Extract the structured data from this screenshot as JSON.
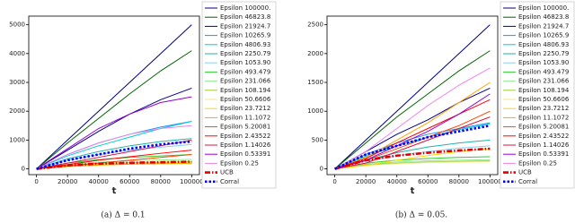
{
  "chart_data": [
    {
      "type": "line",
      "caption": "(a) Δ = 0.1",
      "xlabel": "t",
      "x": [
        0,
        20000,
        40000,
        60000,
        80000,
        100000
      ],
      "xlim": [
        -5000,
        105000
      ],
      "xticks": [
        0,
        20000,
        40000,
        60000,
        80000,
        100000
      ],
      "ylim": [
        -200,
        5300
      ],
      "yticks": [
        0,
        1000,
        2000,
        3000,
        4000,
        5000
      ],
      "series": [
        {
          "name": "Epsilon 100000.",
          "color": "#000080",
          "values": [
            0,
            1000,
            2000,
            3000,
            4000,
            5000
          ]
        },
        {
          "name": "Epsilon 46823.8",
          "color": "#006400",
          "values": [
            0,
            900,
            1750,
            2600,
            3400,
            4100
          ]
        },
        {
          "name": "Epsilon 21924.7",
          "color": "#00008b",
          "values": [
            0,
            650,
            1300,
            1900,
            2400,
            2800
          ]
        },
        {
          "name": "Epsilon 10265.9",
          "color": "#1e90ff",
          "values": [
            0,
            500,
            900,
            1200,
            1450,
            1650
          ]
        },
        {
          "name": "Epsilon 4806.93",
          "color": "#00ced1",
          "values": [
            0,
            450,
            800,
            1100,
            1400,
            1650
          ]
        },
        {
          "name": "Epsilon 2250.79",
          "color": "#20b2aa",
          "values": [
            0,
            350,
            600,
            800,
            950,
            1050
          ]
        },
        {
          "name": "Epsilon 1053.90",
          "color": "#87cefa",
          "values": [
            0,
            300,
            500,
            650,
            750,
            850
          ]
        },
        {
          "name": "Epsilon 493.479",
          "color": "#32cd32",
          "values": [
            0,
            200,
            320,
            400,
            450,
            500
          ]
        },
        {
          "name": "Epsilon 231.066",
          "color": "#90ee90",
          "values": [
            0,
            150,
            230,
            280,
            310,
            330
          ]
        },
        {
          "name": "Epsilon 108.194",
          "color": "#9acd32",
          "values": [
            0,
            120,
            180,
            210,
            230,
            250
          ]
        },
        {
          "name": "Epsilon 50.6606",
          "color": "#f0e68c",
          "values": [
            0,
            100,
            150,
            180,
            200,
            210
          ]
        },
        {
          "name": "Epsilon 23.7212",
          "color": "#ffd700",
          "values": [
            0,
            90,
            140,
            170,
            190,
            200
          ]
        },
        {
          "name": "Epsilon 11.1072",
          "color": "#ffa500",
          "values": [
            0,
            80,
            130,
            160,
            180,
            190
          ]
        },
        {
          "name": "Epsilon 5.20081",
          "color": "#ff4500",
          "values": [
            0,
            100,
            200,
            300,
            400,
            500
          ]
        },
        {
          "name": "Epsilon 2.43522",
          "color": "#ff0000",
          "values": [
            0,
            150,
            300,
            420,
            540,
            650
          ]
        },
        {
          "name": "Epsilon 1.14026",
          "color": "#dc143c",
          "values": [
            0,
            200,
            400,
            600,
            800,
            1000
          ]
        },
        {
          "name": "Epsilon 0.53391",
          "color": "#9400d3",
          "values": [
            0,
            700,
            1400,
            1900,
            2300,
            2500
          ]
        },
        {
          "name": "Epsilon 0.25",
          "color": "#ee82ee",
          "values": [
            0,
            500,
            900,
            1200,
            1400,
            1500
          ]
        },
        {
          "name": "UCB",
          "color": "#e00000",
          "linestyle": "dashdot",
          "values": [
            0,
            120,
            180,
            210,
            230,
            250
          ]
        },
        {
          "name": "Corral",
          "color": "#0000ff",
          "linestyle": "dotted",
          "values": [
            0,
            300,
            500,
            700,
            850,
            950
          ]
        }
      ]
    },
    {
      "type": "line",
      "caption": "(b) Δ = 0.05.",
      "xlabel": "t",
      "x": [
        0,
        20000,
        40000,
        60000,
        80000,
        100000
      ],
      "xlim": [
        -5000,
        105000
      ],
      "xticks": [
        0,
        20000,
        40000,
        60000,
        80000,
        100000
      ],
      "ylim": [
        -100,
        2650
      ],
      "yticks": [
        0,
        500,
        1000,
        1500,
        2000,
        2500
      ],
      "series": [
        {
          "name": "Epsilon 100000.",
          "color": "#000080",
          "values": [
            0,
            500,
            1000,
            1500,
            2000,
            2500
          ]
        },
        {
          "name": "Epsilon 46823.8",
          "color": "#006400",
          "values": [
            0,
            450,
            900,
            1300,
            1700,
            2050
          ]
        },
        {
          "name": "Epsilon 21924.7",
          "color": "#00008b",
          "values": [
            0,
            300,
            600,
            850,
            1150,
            1400
          ]
        },
        {
          "name": "Epsilon 10265.9",
          "color": "#1e90ff",
          "values": [
            0,
            250,
            450,
            600,
            700,
            800
          ]
        },
        {
          "name": "Epsilon 4806.93",
          "color": "#00ced1",
          "values": [
            0,
            220,
            400,
            550,
            680,
            780
          ]
        },
        {
          "name": "Epsilon 2250.79",
          "color": "#20b2aa",
          "values": [
            0,
            150,
            280,
            380,
            450,
            500
          ]
        },
        {
          "name": "Epsilon 1053.90",
          "color": "#87cefa",
          "values": [
            0,
            130,
            230,
            300,
            360,
            400
          ]
        },
        {
          "name": "Epsilon 493.479",
          "color": "#32cd32",
          "values": [
            0,
            100,
            150,
            180,
            200,
            210
          ]
        },
        {
          "name": "Epsilon 231.066",
          "color": "#90ee90",
          "values": [
            0,
            80,
            120,
            140,
            150,
            160
          ]
        },
        {
          "name": "Epsilon 108.194",
          "color": "#9acd32",
          "values": [
            0,
            70,
            100,
            120,
            130,
            140
          ]
        },
        {
          "name": "Epsilon 50.6606",
          "color": "#f0e68c",
          "values": [
            0,
            60,
            90,
            110,
            120,
            130
          ]
        },
        {
          "name": "Epsilon 23.7212",
          "color": "#ffd700",
          "values": [
            0,
            60,
            150,
            230,
            300,
            350
          ]
        },
        {
          "name": "Epsilon 11.1072",
          "color": "#ffa500",
          "values": [
            0,
            200,
            500,
            800,
            1150,
            1500
          ]
        },
        {
          "name": "Epsilon 5.20081",
          "color": "#ff4500",
          "values": [
            0,
            150,
            350,
            550,
            750,
            1000
          ]
        },
        {
          "name": "Epsilon 2.43522",
          "color": "#ff0000",
          "values": [
            0,
            180,
            450,
            700,
            950,
            1200
          ]
        },
        {
          "name": "Epsilon 1.14026",
          "color": "#dc143c",
          "values": [
            0,
            100,
            300,
            500,
            700,
            900
          ]
        },
        {
          "name": "Epsilon 0.53391",
          "color": "#9400d3",
          "values": [
            0,
            150,
            400,
            650,
            950,
            1300
          ]
        },
        {
          "name": "Epsilon 0.25",
          "color": "#ee82ee",
          "values": [
            0,
            300,
            700,
            1100,
            1450,
            1750
          ]
        },
        {
          "name": "UCB",
          "color": "#e00000",
          "linestyle": "dashdot",
          "values": [
            0,
            150,
            230,
            280,
            320,
            350
          ]
        },
        {
          "name": "Corral",
          "color": "#0000ff",
          "linestyle": "dotted",
          "values": [
            0,
            250,
            400,
            550,
            650,
            750
          ]
        }
      ]
    }
  ]
}
